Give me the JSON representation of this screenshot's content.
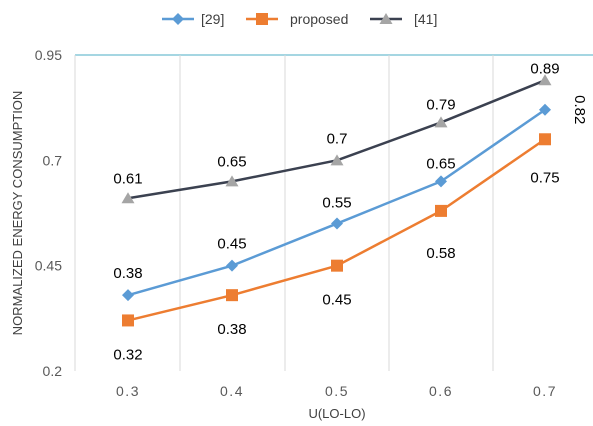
{
  "chart_data": {
    "type": "line",
    "title": "",
    "xlabel": "U(LO-LO)",
    "ylabel": "NORMALIZED ENERGY CONSUMPTION",
    "x": [
      "0.3",
      "0.4",
      "0.5",
      "0.6",
      "0.7"
    ],
    "xticklabels": [
      "0.3",
      "0.4",
      "0.5",
      "0.6",
      "0.7"
    ],
    "yticks": [
      0.2,
      0.45,
      0.7,
      0.95
    ],
    "yticklabels": [
      "0.2",
      "0.45",
      "0.7",
      "0.95"
    ],
    "ylim": [
      0.2,
      0.95
    ],
    "grid": "vertical",
    "legend": "top",
    "series": [
      {
        "name": "[29]",
        "values": [
          0.38,
          0.45,
          0.55,
          0.65,
          0.82
        ],
        "labels": [
          "0.38",
          "0.45",
          "0.55",
          "0.65",
          "0.82"
        ],
        "color": "#5B9BD5",
        "marker": "diamond"
      },
      {
        "name": "proposed",
        "values": [
          0.32,
          0.38,
          0.45,
          0.58,
          0.75
        ],
        "labels": [
          "0.32",
          "0.38",
          "0.45",
          "0.58",
          "0.75"
        ],
        "color": "#ED7D31",
        "marker": "square"
      },
      {
        "name": "[41]",
        "values": [
          0.61,
          0.65,
          0.7,
          0.79,
          0.89
        ],
        "labels": [
          "0.61",
          "0.65",
          "0.7",
          "0.79",
          "0.89"
        ],
        "color": "#3B4150",
        "marker_color": "#A5A5A5",
        "marker": "triangle"
      }
    ]
  },
  "colors": {
    "top_border": "#4BACC6",
    "grid": "#D9D9D9"
  }
}
